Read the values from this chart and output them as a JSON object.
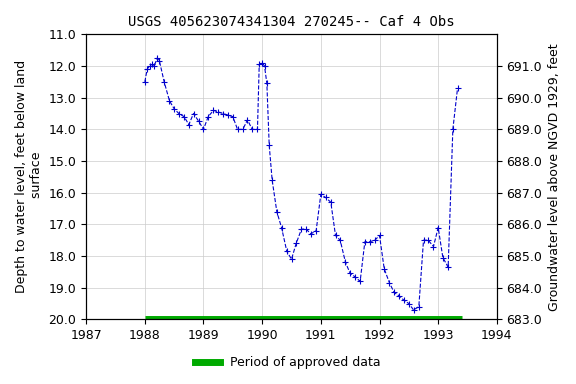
{
  "title": "USGS 405623074341304 270245-- Caf 4 Obs",
  "ylabel_left": "Depth to water level, feet below land\n surface",
  "ylabel_right": "Groundwater level above NGVD 1929, feet",
  "xlabel": "",
  "xlim": [
    1987,
    1994
  ],
  "ylim_left": [
    20.0,
    11.0
  ],
  "ylim_right": [
    683.0,
    692.0
  ],
  "yticks_left": [
    11.0,
    12.0,
    13.0,
    14.0,
    15.0,
    16.0,
    17.0,
    18.0,
    19.0,
    20.0
  ],
  "yticks_right": [
    683.0,
    684.0,
    685.0,
    686.0,
    687.0,
    688.0,
    689.0,
    690.0,
    691.0
  ],
  "xticks": [
    1987,
    1988,
    1989,
    1990,
    1991,
    1992,
    1993,
    1994
  ],
  "line_color": "#0000cc",
  "approved_bar_color": "#00aa00",
  "approved_bar_y": 20.0,
  "approved_bar_xstart": 1988.0,
  "approved_bar_xend": 1993.4,
  "background_color": "#ffffff",
  "grid_color": "#cccccc",
  "data_x": [
    1988.0,
    1988.04,
    1988.08,
    1988.12,
    1988.16,
    1988.21,
    1988.25,
    1988.33,
    1988.42,
    1988.5,
    1988.58,
    1988.67,
    1988.75,
    1988.83,
    1988.92,
    1989.0,
    1989.08,
    1989.17,
    1989.25,
    1989.33,
    1989.42,
    1989.5,
    1989.58,
    1989.67,
    1989.75,
    1989.83,
    1989.92,
    1989.95,
    1990.0,
    1990.04,
    1990.08,
    1990.12,
    1990.17,
    1990.25,
    1990.33,
    1990.42,
    1990.5,
    1990.58,
    1990.67,
    1990.75,
    1990.83,
    1990.92,
    1991.0,
    1991.08,
    1991.17,
    1991.25,
    1991.33,
    1991.42,
    1991.5,
    1991.58,
    1991.67,
    1991.75,
    1991.83,
    1991.92,
    1992.0,
    1992.08,
    1992.17,
    1992.25,
    1992.33,
    1992.42,
    1992.5,
    1992.58,
    1992.67,
    1992.75,
    1992.83,
    1992.92,
    1993.0,
    1993.08,
    1993.17,
    1993.25,
    1993.33
  ],
  "data_y": [
    12.5,
    12.1,
    12.0,
    11.95,
    12.0,
    11.75,
    11.85,
    12.5,
    13.1,
    13.35,
    13.5,
    13.6,
    13.85,
    13.5,
    13.75,
    14.0,
    13.6,
    13.4,
    13.45,
    13.5,
    13.55,
    13.6,
    14.0,
    14.0,
    13.7,
    14.0,
    14.0,
    11.95,
    11.9,
    12.0,
    12.55,
    14.5,
    15.6,
    16.6,
    17.1,
    17.85,
    18.1,
    17.6,
    17.15,
    17.15,
    17.3,
    17.2,
    16.05,
    16.15,
    16.3,
    17.35,
    17.5,
    18.2,
    18.55,
    18.65,
    18.8,
    17.55,
    17.55,
    17.5,
    17.35,
    18.4,
    18.85,
    19.15,
    19.25,
    19.4,
    19.5,
    19.7,
    19.6,
    17.5,
    17.5,
    17.7,
    17.1,
    18.05,
    18.35,
    14.0,
    12.7
  ],
  "legend_label": "Period of approved data",
  "title_fontsize": 10,
  "axis_label_fontsize": 9,
  "tick_fontsize": 9
}
